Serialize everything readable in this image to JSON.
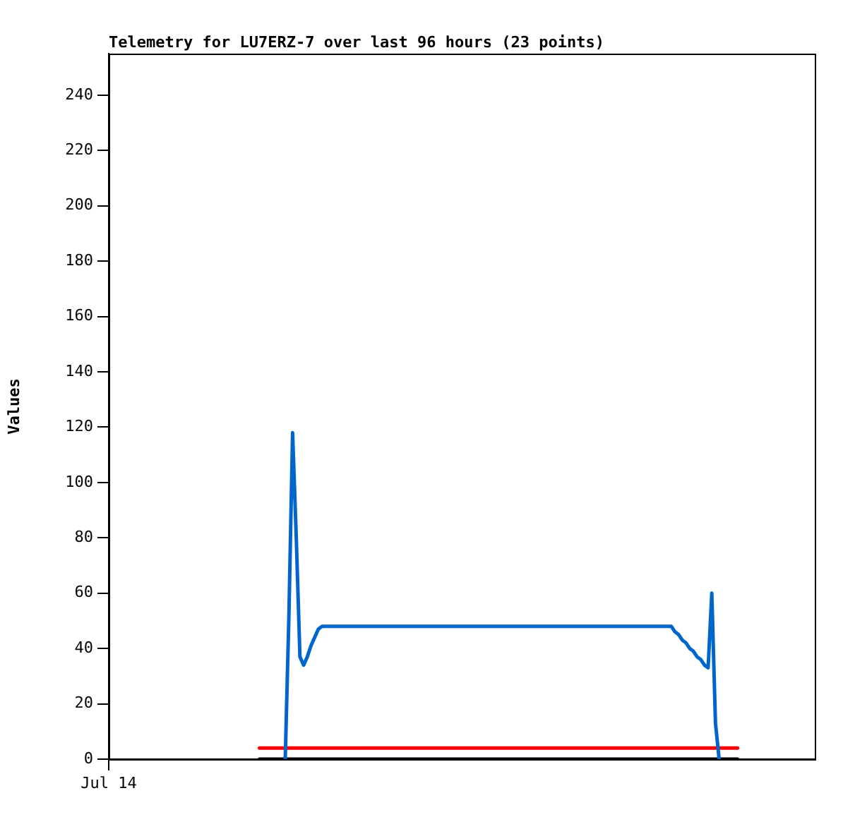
{
  "chart_data": {
    "type": "line",
    "title": "Telemetry for LU7ERZ-7 over last 96 hours (23 points)",
    "ylabel": "Values",
    "categories": [
      "Jul 14",
      null,
      null,
      null,
      null,
      null,
      null,
      null,
      null,
      null,
      null,
      null,
      null,
      null,
      null,
      null,
      null,
      null,
      null,
      null,
      null,
      null,
      null,
      null,
      null,
      null,
      null,
      null,
      null,
      null,
      null,
      null,
      null,
      null,
      null,
      null,
      null,
      null,
      null,
      null,
      null,
      null,
      null,
      null,
      null,
      null,
      null,
      null,
      null,
      null,
      null,
      null,
      null,
      null,
      null,
      null,
      null,
      null,
      null,
      null,
      null,
      null,
      null,
      null,
      null,
      null,
      null,
      null,
      null,
      null,
      null,
      null,
      null,
      null,
      null,
      null,
      null,
      null,
      null,
      null,
      null,
      null,
      null,
      null,
      null,
      null,
      null,
      null,
      null,
      null,
      null,
      null,
      null,
      null,
      null,
      null,
      null,
      null,
      null,
      null,
      null,
      null,
      null,
      null,
      null,
      null,
      null,
      null,
      null,
      null,
      null,
      null,
      null,
      null,
      null,
      null,
      null,
      null,
      null,
      null,
      null,
      null,
      null,
      null,
      null,
      null,
      null,
      null,
      null,
      null,
      null,
      null,
      null,
      null,
      null,
      null,
      null,
      null,
      null,
      null,
      null,
      null,
      null,
      null,
      null,
      null,
      null,
      null,
      null,
      null,
      null,
      null,
      null,
      null,
      null,
      null,
      null,
      null,
      null,
      null,
      null,
      null,
      null,
      null,
      null,
      null,
      null,
      null,
      null,
      null,
      null,
      null,
      null,
      null,
      null,
      null,
      null,
      null,
      null,
      null,
      null,
      null,
      null,
      null,
      null,
      null,
      null,
      null,
      null,
      null,
      null,
      null,
      null
    ],
    "ylim": [
      0,
      255
    ],
    "yticks": [
      0,
      20,
      40,
      60,
      80,
      100,
      120,
      140,
      160,
      180,
      200,
      220,
      240
    ],
    "grid": false,
    "legend": false,
    "marker": "none",
    "line_style": "solid",
    "series": [
      {
        "color": "#0066cc",
        "values": [
          null,
          null,
          null,
          null,
          null,
          null,
          null,
          null,
          null,
          null,
          null,
          null,
          null,
          null,
          null,
          null,
          null,
          null,
          null,
          null,
          null,
          null,
          null,
          null,
          null,
          null,
          null,
          null,
          null,
          null,
          null,
          null,
          null,
          null,
          null,
          null,
          null,
          null,
          null,
          null,
          null,
          null,
          null,
          null,
          null,
          null,
          null,
          null,
          0,
          52,
          118,
          80,
          37,
          34,
          37,
          41,
          44,
          47,
          48,
          48,
          48,
          48,
          48,
          48,
          48,
          48,
          48,
          48,
          48,
          48,
          48,
          48,
          48,
          48,
          48,
          48,
          48,
          48,
          48,
          48,
          48,
          48,
          48,
          48,
          48,
          48,
          48,
          48,
          48,
          48,
          48,
          48,
          48,
          48,
          48,
          48,
          48,
          48,
          48,
          48,
          48,
          48,
          48,
          48,
          48,
          48,
          48,
          48,
          48,
          48,
          48,
          48,
          48,
          48,
          48,
          48,
          48,
          48,
          48,
          48,
          48,
          48,
          48,
          48,
          48,
          48,
          48,
          48,
          48,
          48,
          48,
          48,
          48,
          48,
          48,
          48,
          48,
          48,
          48,
          48,
          48,
          48,
          48,
          48,
          48,
          48,
          48,
          48,
          48,
          48,
          48,
          48,
          48,
          48,
          46,
          45,
          43,
          42,
          40,
          39,
          37,
          36,
          34,
          33,
          60,
          13,
          0,
          null,
          null,
          null,
          null,
          null,
          null,
          null,
          null,
          null,
          null,
          null,
          null,
          null,
          null,
          null,
          null,
          null,
          null,
          null,
          null,
          null,
          null,
          null,
          null,
          null,
          null
        ]
      },
      {
        "color": "#ff0000",
        "values": [
          null,
          null,
          null,
          null,
          null,
          null,
          null,
          null,
          null,
          null,
          null,
          null,
          null,
          null,
          null,
          null,
          null,
          null,
          null,
          null,
          null,
          null,
          null,
          null,
          null,
          null,
          null,
          null,
          null,
          null,
          null,
          null,
          null,
          null,
          null,
          null,
          null,
          null,
          null,
          null,
          null,
          4,
          4,
          4,
          4,
          4,
          4,
          4,
          4,
          4,
          4,
          4,
          4,
          4,
          4,
          4,
          4,
          4,
          4,
          4,
          4,
          4,
          4,
          4,
          4,
          4,
          4,
          4,
          4,
          4,
          4,
          4,
          4,
          4,
          4,
          4,
          4,
          4,
          4,
          4,
          4,
          4,
          4,
          4,
          4,
          4,
          4,
          4,
          4,
          4,
          4,
          4,
          4,
          4,
          4,
          4,
          4,
          4,
          4,
          4,
          4,
          4,
          4,
          4,
          4,
          4,
          4,
          4,
          4,
          4,
          4,
          4,
          4,
          4,
          4,
          4,
          4,
          4,
          4,
          4,
          4,
          4,
          4,
          4,
          4,
          4,
          4,
          4,
          4,
          4,
          4,
          4,
          4,
          4,
          4,
          4,
          4,
          4,
          4,
          4,
          4,
          4,
          4,
          4,
          4,
          4,
          4,
          4,
          4,
          4,
          4,
          4,
          4,
          4,
          4,
          4,
          4,
          4,
          4,
          4,
          4,
          4,
          4,
          4,
          4,
          4,
          4,
          4,
          4,
          4,
          4,
          4,
          null,
          null,
          null,
          null,
          null,
          null,
          null,
          null,
          null,
          null,
          null,
          null,
          null,
          null,
          null,
          null,
          null,
          null,
          null,
          null,
          null
        ]
      },
      {
        "color": "#000000",
        "values": [
          null,
          null,
          null,
          null,
          null,
          null,
          null,
          null,
          null,
          null,
          null,
          null,
          null,
          null,
          null,
          null,
          null,
          null,
          null,
          null,
          null,
          null,
          null,
          null,
          null,
          null,
          null,
          null,
          null,
          null,
          null,
          null,
          null,
          null,
          null,
          null,
          null,
          null,
          null,
          null,
          null,
          0,
          0,
          0,
          0,
          0,
          0,
          0,
          0,
          0,
          0,
          0,
          0,
          0,
          0,
          0,
          0,
          0,
          0,
          0,
          0,
          0,
          0,
          0,
          0,
          0,
          0,
          0,
          0,
          0,
          0,
          0,
          0,
          0,
          0,
          0,
          0,
          0,
          0,
          0,
          0,
          0,
          0,
          0,
          0,
          0,
          0,
          0,
          0,
          0,
          0,
          0,
          0,
          0,
          0,
          0,
          0,
          0,
          0,
          0,
          0,
          0,
          0,
          0,
          0,
          0,
          0,
          0,
          0,
          0,
          0,
          0,
          0,
          0,
          0,
          0,
          0,
          0,
          0,
          0,
          0,
          0,
          0,
          0,
          0,
          0,
          0,
          0,
          0,
          0,
          0,
          0,
          0,
          0,
          0,
          0,
          0,
          0,
          0,
          0,
          0,
          0,
          0,
          0,
          0,
          0,
          0,
          0,
          0,
          0,
          0,
          0,
          0,
          0,
          0,
          0,
          0,
          0,
          0,
          0,
          0,
          0,
          0,
          0,
          0,
          0,
          0,
          0,
          0,
          0,
          0,
          0,
          null,
          null,
          null,
          null,
          null,
          null,
          null,
          null,
          null,
          null,
          null,
          null,
          null,
          null,
          null,
          null,
          null,
          null,
          null,
          null,
          null
        ]
      }
    ]
  }
}
